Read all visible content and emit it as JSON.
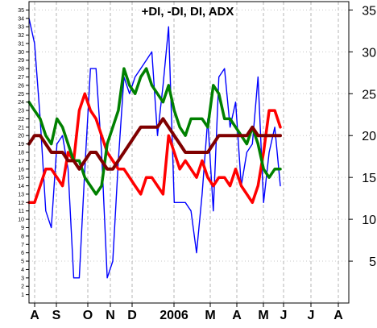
{
  "chart_data": {
    "type": "line",
    "title": "+DI, -DI, DI, ADX",
    "x_labels": [
      "A",
      "S",
      "O",
      "N",
      "D",
      "2006",
      "M",
      "A",
      "M",
      "J",
      "J",
      "A"
    ],
    "y_left": {
      "range": [
        0,
        36
      ],
      "ticks": [
        1,
        2,
        3,
        4,
        5,
        6,
        7,
        8,
        9,
        10,
        11,
        12,
        13,
        14,
        15,
        16,
        17,
        18,
        19,
        20,
        21,
        22,
        23,
        24,
        25,
        26,
        27,
        28,
        29,
        30,
        31,
        32,
        33,
        34,
        35
      ]
    },
    "y_right": {
      "range": [
        0,
        36
      ],
      "ticks": [
        5,
        10,
        15,
        20,
        25,
        30,
        35
      ]
    },
    "grid": true,
    "series": [
      {
        "color": "#0000ff",
        "values": [
          34,
          31,
          22,
          11,
          9,
          19,
          20,
          16,
          3,
          3,
          16,
          28,
          28,
          18,
          3,
          5,
          17,
          27,
          25,
          27,
          28,
          29,
          30,
          20,
          26,
          33,
          12,
          12,
          12,
          11,
          6,
          13,
          22,
          11,
          27,
          28,
          21,
          24,
          14,
          18,
          19,
          27,
          12,
          18,
          21,
          14
        ]
      },
      {
        "color": "#ff0000",
        "values": [
          12,
          12,
          14,
          16,
          16,
          15,
          14,
          18,
          17,
          23,
          25,
          23,
          22,
          20,
          18,
          17,
          16,
          16,
          15,
          14,
          13,
          15,
          15,
          14,
          13,
          20,
          18,
          16,
          17,
          16,
          15,
          17,
          15,
          14,
          15,
          15,
          14,
          16,
          14,
          13,
          12,
          14,
          18,
          23,
          23,
          21
        ]
      },
      {
        "color": "#008000",
        "values": [
          24,
          23,
          22,
          20,
          19,
          22,
          21,
          19,
          17,
          17,
          15,
          14,
          13,
          14,
          19,
          21,
          23,
          28,
          26,
          25,
          27,
          28,
          26,
          25,
          24,
          26,
          23,
          21,
          20,
          22,
          22,
          22,
          21,
          26,
          25,
          22,
          22,
          21,
          20,
          19,
          21,
          19,
          16,
          15,
          16,
          16
        ]
      },
      {
        "color": "#800000",
        "values": [
          19,
          20,
          20,
          19,
          18,
          18,
          18,
          17,
          17,
          16,
          17,
          18,
          18,
          17,
          16,
          16,
          17,
          18,
          19,
          20,
          21,
          21,
          21,
          21,
          22,
          21,
          20,
          19,
          18,
          18,
          18,
          18,
          18,
          19,
          20,
          20,
          20,
          20,
          20,
          20,
          21,
          20,
          20,
          20,
          20,
          20
        ]
      }
    ]
  }
}
